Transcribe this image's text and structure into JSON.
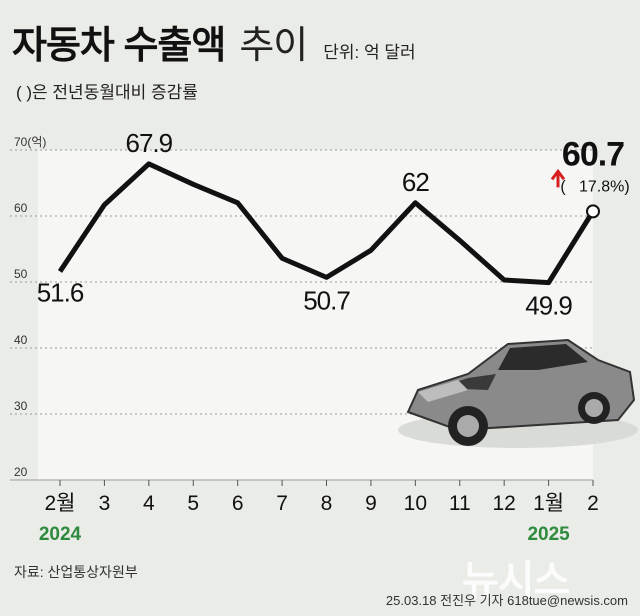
{
  "header": {
    "title_bold": "자동차 수출액",
    "title_light": "추이",
    "unit": "단위: 억 달러",
    "subtitle": "( )은 전년동월대비 증감률"
  },
  "chart_data": {
    "type": "line",
    "categories": [
      "2월",
      "3",
      "4",
      "5",
      "6",
      "7",
      "8",
      "9",
      "10",
      "11",
      "12",
      "1월",
      "2"
    ],
    "year_labels": [
      {
        "index": 0,
        "label": "2024"
      },
      {
        "index": 11,
        "label": "2025"
      }
    ],
    "values": [
      51.6,
      61.7,
      67.9,
      64.8,
      62.0,
      53.6,
      50.7,
      54.8,
      62.0,
      56.3,
      50.3,
      49.9,
      60.7
    ],
    "point_labels": {
      "0": "51.6",
      "2": "67.9",
      "6": "50.7",
      "8": "62",
      "11": "49.9",
      "12": "60.7"
    },
    "highlight": {
      "index": 12,
      "value": "60.7",
      "change": "17.8%",
      "direction": "up"
    },
    "yticks": [
      "20",
      "30",
      "40",
      "50",
      "60",
      "70(억)"
    ],
    "ylim": [
      20,
      70
    ],
    "grid": true,
    "colors": {
      "line": "#111111",
      "plot_bg": "#f6f6f4",
      "year": "#2e8b3e",
      "arrow": "#d62020"
    }
  },
  "source": "자료: 산업통상자원부",
  "credit": "25.03.18 전진우 기자 618tue@newsis.com",
  "watermark": "뉴시스"
}
